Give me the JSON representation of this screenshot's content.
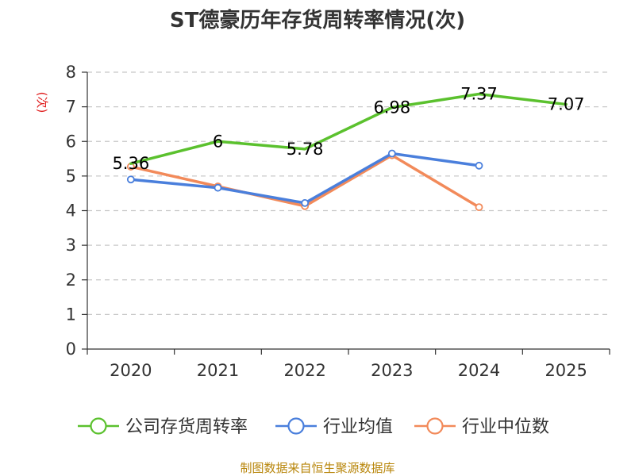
{
  "chart_data": {
    "type": "line",
    "title": "ST德豪历年存货周转率情况(次)",
    "ylabel": "(次)",
    "xlabel": "",
    "categories": [
      "2020",
      "2021",
      "2022",
      "2023",
      "2024",
      "2025"
    ],
    "ylim": [
      0,
      8
    ],
    "yticks": [
      0,
      1,
      2,
      3,
      4,
      5,
      6,
      7,
      8
    ],
    "grid": "horizontal dashed",
    "legend_position": "bottom",
    "series": [
      {
        "name": "公司存货周转率",
        "color": "#5bc12e",
        "values": [
          5.36,
          6.0,
          5.78,
          6.98,
          7.37,
          7.07
        ],
        "labels": [
          "5.36",
          "6",
          "5.78",
          "6.98",
          "7.37",
          "7.07"
        ],
        "markers": false
      },
      {
        "name": "行业均值",
        "color": "#4a7fdc",
        "values": [
          4.9,
          4.66,
          4.22,
          5.65,
          5.3,
          null
        ],
        "markers": true
      },
      {
        "name": "行业中位数",
        "color": "#f28a5a",
        "values": [
          5.27,
          4.7,
          4.13,
          5.6,
          4.1,
          null
        ],
        "markers": true
      }
    ]
  },
  "source": "制图数据来自恒生聚源数据库"
}
